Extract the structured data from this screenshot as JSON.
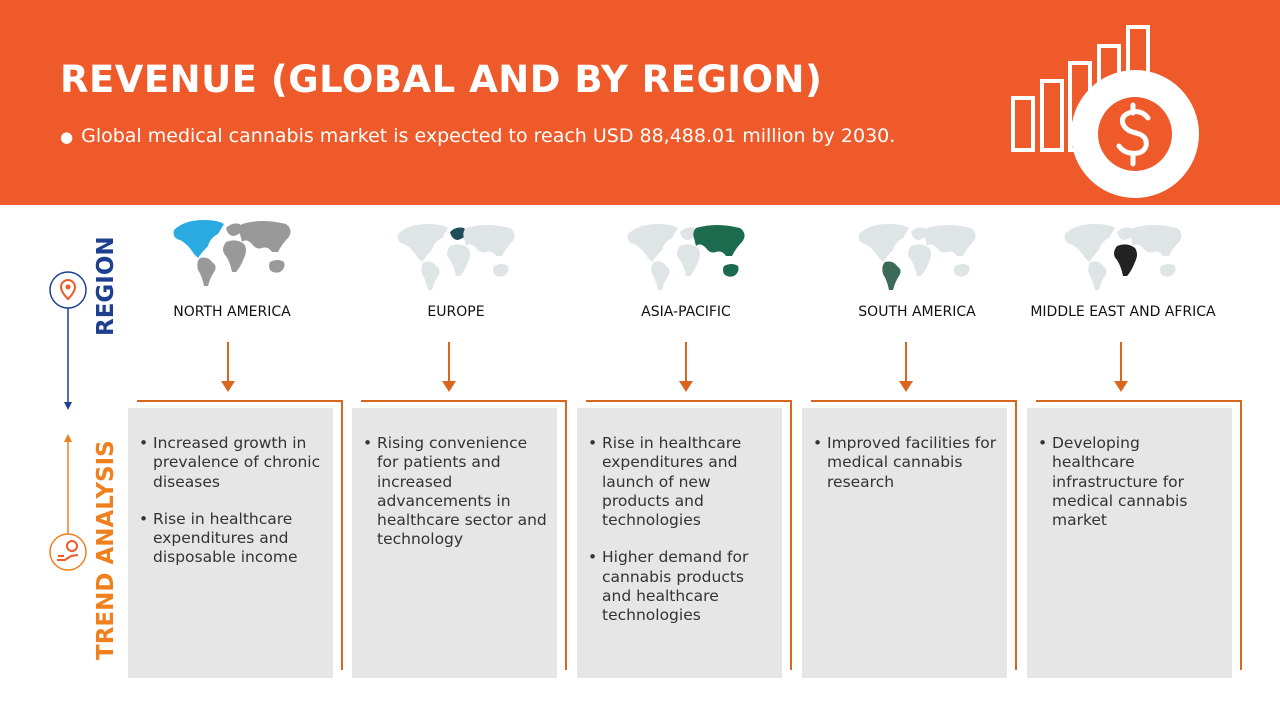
{
  "header": {
    "title": "REVENUE (GLOBAL AND BY REGION)",
    "subtitle": "Global medical cannabis market is expected to reach USD 88,488.01 million by 2030."
  },
  "sidebar": {
    "region_label": "REGION",
    "trend_label": "TREND ANALYSIS"
  },
  "regions": [
    {
      "name": "NORTH AMERICA",
      "trends": [
        "Increased growth in prevalence of chronic diseases",
        "Rise in healthcare expenditures and disposable income"
      ]
    },
    {
      "name": "EUROPE",
      "trends": [
        "Rising convenience for patients and increased advancements in healthcare sector and technology"
      ]
    },
    {
      "name": "ASIA-PACIFIC",
      "trends": [
        "Rise in healthcare expenditures and launch of new products and technologies",
        "Higher demand for cannabis products and healthcare technologies"
      ]
    },
    {
      "name": "SOUTH AMERICA",
      "trends": [
        "Improved facilities for medical cannabis research"
      ]
    },
    {
      "name": "MIDDLE EAST AND AFRICA",
      "trends": [
        "Developing healthcare infrastructure for medical cannabis market"
      ]
    }
  ]
}
